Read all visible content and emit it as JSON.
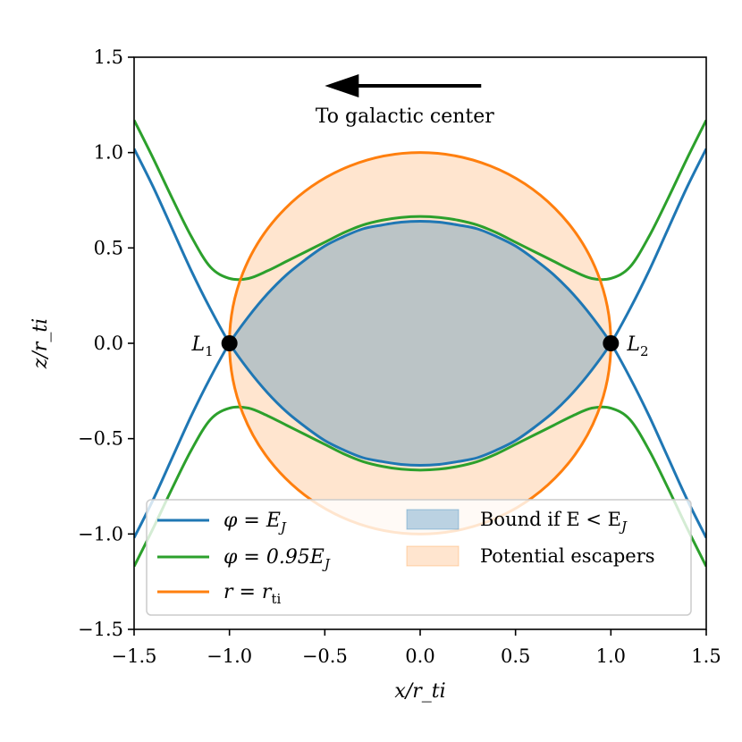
{
  "chart_data": {
    "type": "line",
    "title": "",
    "xlabel": "x/r_ti",
    "ylabel": "z/r_ti",
    "xlim": [
      -1.5,
      1.5
    ],
    "ylim": [
      -1.5,
      1.5
    ],
    "xticks": [
      -1.5,
      -1.0,
      -0.5,
      0.0,
      0.5,
      1.0,
      1.5
    ],
    "yticks": [
      -1.5,
      -1.0,
      -0.5,
      0.0,
      0.5,
      1.0,
      1.5
    ],
    "xtick_labels": [
      "−1.5",
      "−1.0",
      "−0.5",
      "0.0",
      "0.5",
      "1.0",
      "1.5"
    ],
    "ytick_labels": [
      "−1.5",
      "−1.0",
      "−0.5",
      "0.0",
      "0.5",
      "1.0",
      "1.5"
    ],
    "grid": false,
    "legend_position": "lower-center",
    "series": [
      {
        "name": "φ = E_J",
        "legend_label": "φ = E",
        "legend_sub": "J",
        "color": "#1f77b4",
        "x": [
          -1.5,
          -1.4,
          -1.3,
          -1.2,
          -1.1,
          -1.0,
          -0.9,
          -0.8,
          -0.7,
          -0.6,
          -0.5,
          -0.4,
          -0.3,
          -0.2,
          -0.1,
          0.0,
          0.1,
          0.2,
          0.3,
          0.4,
          0.5,
          0.6,
          0.7,
          0.8,
          0.9,
          1.0,
          1.1,
          1.2,
          1.3,
          1.4,
          1.5
        ],
        "y_upper": [
          -1.02,
          -0.82,
          -0.6,
          -0.38,
          -0.18,
          0.0,
          0.14,
          0.26,
          0.36,
          0.44,
          0.51,
          0.56,
          0.6,
          0.62,
          0.635,
          0.64,
          0.635,
          0.62,
          0.6,
          0.56,
          0.51,
          0.44,
          0.36,
          0.26,
          0.14,
          0.0,
          -0.18,
          -0.38,
          -0.6,
          -0.82,
          -1.02
        ],
        "y_lower": [
          1.02,
          0.82,
          0.6,
          0.38,
          0.18,
          0.0,
          -0.14,
          -0.26,
          -0.36,
          -0.44,
          -0.51,
          -0.56,
          -0.6,
          -0.62,
          -0.635,
          -0.64,
          -0.635,
          -0.62,
          -0.6,
          -0.56,
          -0.51,
          -0.44,
          -0.36,
          -0.26,
          -0.14,
          0.0,
          0.18,
          0.38,
          0.6,
          0.82,
          1.02
        ]
      },
      {
        "name": "φ = 0.95E_J",
        "legend_label": "φ = 0.95E",
        "legend_sub": "J",
        "color": "#2ca02c",
        "x": [
          -1.5,
          -1.4,
          -1.3,
          -1.2,
          -1.1,
          -1.0,
          -0.9,
          -0.8,
          -0.7,
          -0.6,
          -0.5,
          -0.4,
          -0.3,
          -0.2,
          -0.1,
          0.0,
          0.1,
          0.2,
          0.3,
          0.4,
          0.5,
          0.6,
          0.7,
          0.8,
          0.9,
          1.0,
          1.1,
          1.2,
          1.3,
          1.4,
          1.5
        ],
        "y_upper": [
          1.17,
          0.97,
          0.76,
          0.56,
          0.4,
          0.34,
          0.34,
          0.38,
          0.43,
          0.48,
          0.53,
          0.58,
          0.62,
          0.645,
          0.66,
          0.665,
          0.66,
          0.645,
          0.62,
          0.58,
          0.53,
          0.48,
          0.43,
          0.38,
          0.34,
          0.34,
          0.4,
          0.56,
          0.76,
          0.97,
          1.17
        ],
        "y_lower": [
          -1.17,
          -0.97,
          -0.76,
          -0.56,
          -0.4,
          -0.34,
          -0.34,
          -0.38,
          -0.43,
          -0.48,
          -0.53,
          -0.58,
          -0.62,
          -0.645,
          -0.66,
          -0.665,
          -0.66,
          -0.645,
          -0.62,
          -0.58,
          -0.53,
          -0.48,
          -0.43,
          -0.38,
          -0.34,
          -0.34,
          -0.4,
          -0.56,
          -0.76,
          -0.97,
          -1.17
        ]
      },
      {
        "name": "r = r_ti",
        "legend_label": "r = r",
        "legend_sub": "ti",
        "color": "#ff7f0e",
        "shape": "circle",
        "radius": 1.0
      }
    ],
    "fills": [
      {
        "name": "Bound if E < E_J",
        "label": "Bound if E < E",
        "sub": "J",
        "color": "#1f77b4",
        "opacity": 0.3,
        "region": "between phi=E_J branches for |x| <= 1"
      },
      {
        "name": "Potential escapers",
        "label": "Potential escapers",
        "color": "#ff7f0e",
        "opacity": 0.2,
        "region": "inside r = r_ti"
      }
    ],
    "points": [
      {
        "label": "L",
        "sub": "1",
        "x": -1.0,
        "y": 0.0
      },
      {
        "label": "L",
        "sub": "2",
        "x": 1.0,
        "y": 0.0
      }
    ],
    "annotations": [
      {
        "text": "To galactic center",
        "arrow_from": [
          0.32,
          1.35
        ],
        "arrow_to": [
          -0.5,
          1.35
        ]
      }
    ]
  }
}
